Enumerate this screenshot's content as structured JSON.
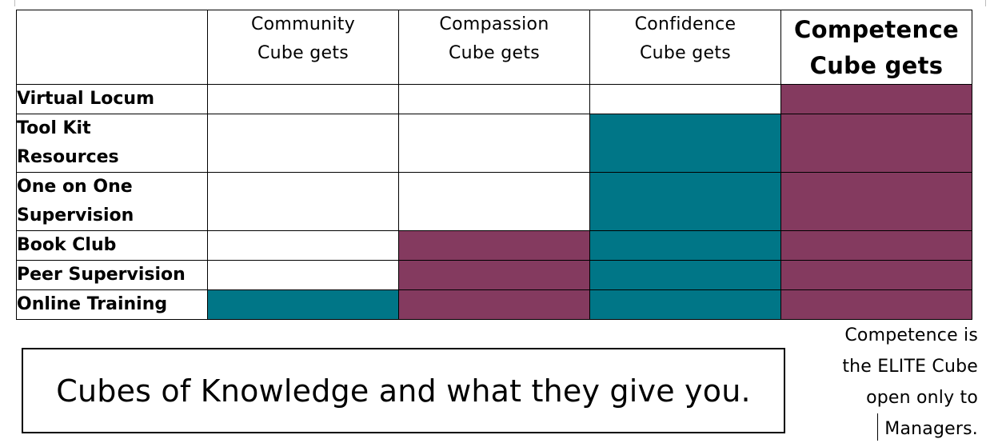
{
  "table": {
    "header": {
      "blank": "",
      "cubes": [
        {
          "line1": "Community",
          "line2": "Cube gets",
          "emphasis": false
        },
        {
          "line1": "Compassion",
          "line2": "Cube gets",
          "emphasis": false
        },
        {
          "line1": "Confidence",
          "line2": "Cube gets",
          "emphasis": false
        },
        {
          "line1": "Competence",
          "line2": "Cube gets",
          "emphasis": true
        }
      ]
    },
    "rows": [
      {
        "label_lines": [
          "Virtual Locum"
        ],
        "cells": [
          "none",
          "none",
          "none",
          "plum"
        ]
      },
      {
        "label_lines": [
          "Tool Kit",
          "Resources"
        ],
        "cells": [
          "none",
          "none",
          "teal",
          "plum"
        ]
      },
      {
        "label_lines": [
          "One on One",
          "Supervision"
        ],
        "cells": [
          "none",
          "none",
          "teal",
          "plum"
        ]
      },
      {
        "label_lines": [
          "Book Club"
        ],
        "cells": [
          "none",
          "plum",
          "teal",
          "plum"
        ]
      },
      {
        "label_lines": [
          "Peer Supervision"
        ],
        "cells": [
          "none",
          "plum",
          "teal",
          "plum"
        ]
      },
      {
        "label_lines": [
          "Online Training"
        ],
        "cells": [
          "teal",
          "plum",
          "teal",
          "plum"
        ]
      }
    ]
  },
  "colors": {
    "teal": "#007687",
    "plum": "#843a5f"
  },
  "caption": "Cubes of Knowledge and what they give you.",
  "side_note": {
    "lines": [
      "Competence is",
      "the ELITE Cube",
      "open only to",
      "Managers."
    ]
  }
}
